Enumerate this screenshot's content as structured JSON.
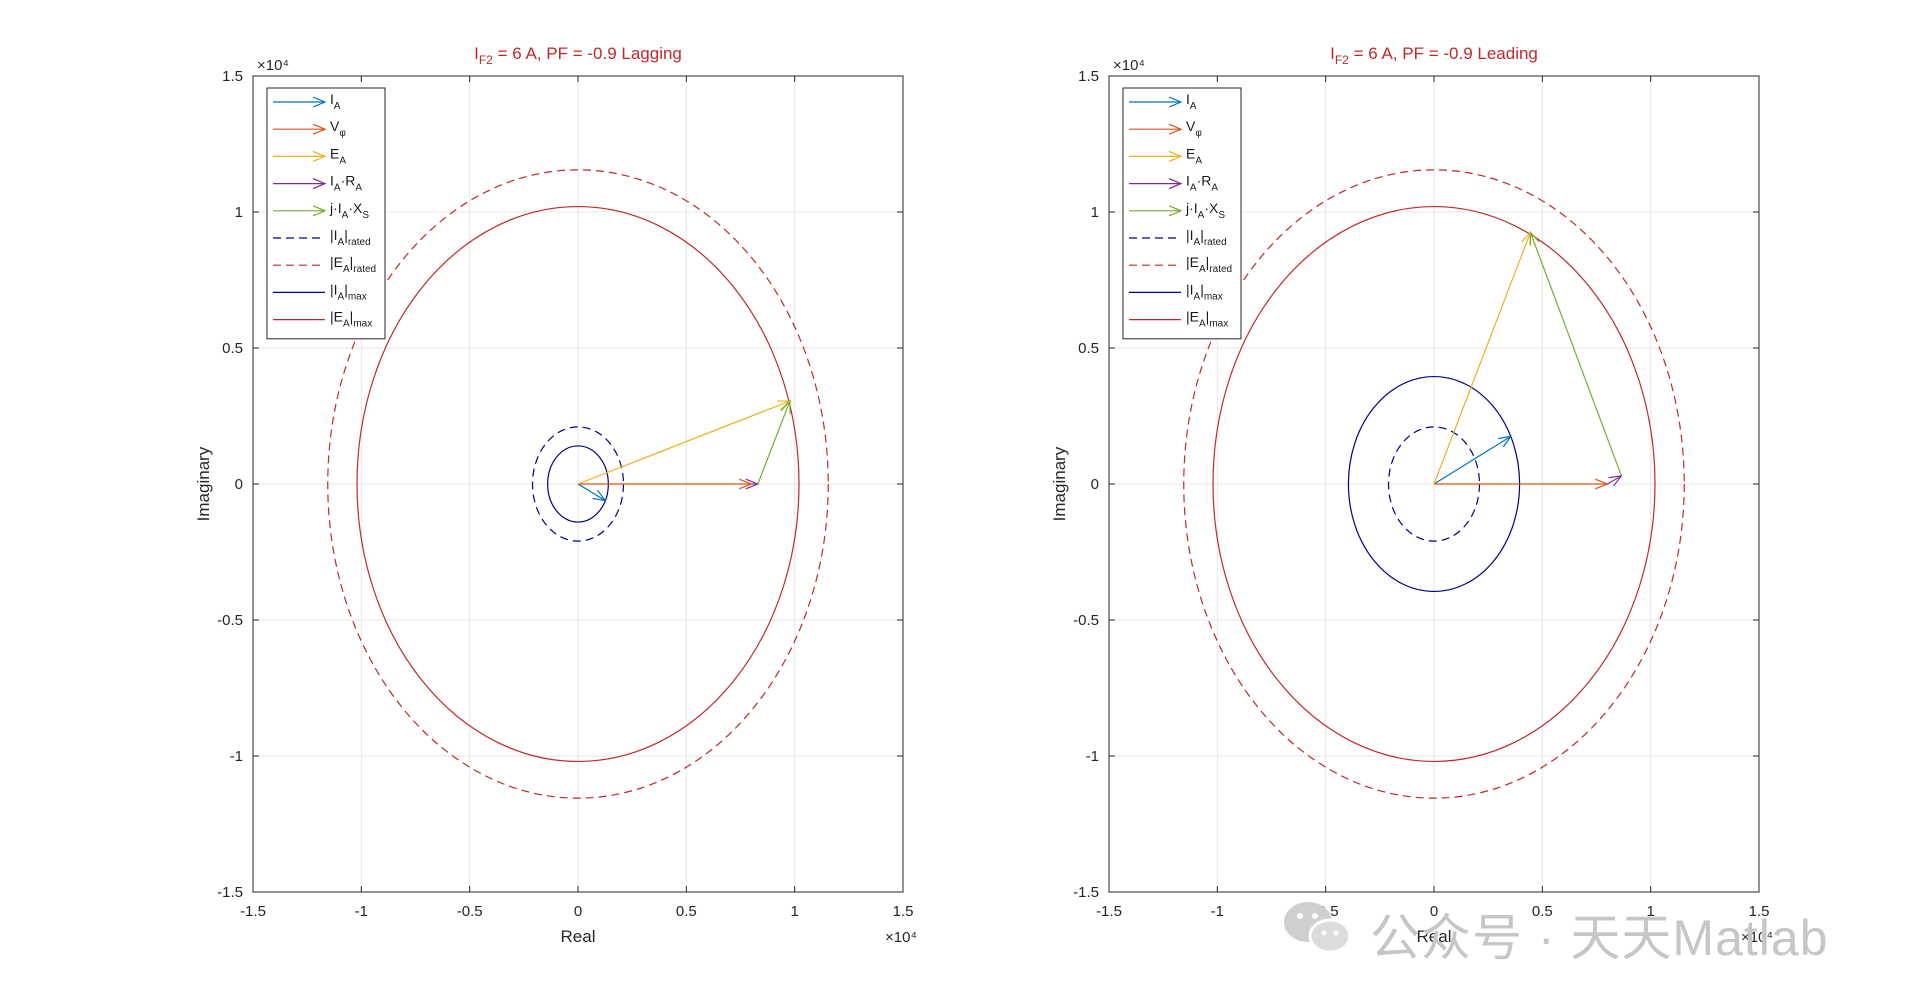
{
  "chart_data": [
    {
      "type": "phasor",
      "title": "I_F2 = 6 A, PF = -0.9 Lagging",
      "title_parts": {
        "main": "I",
        "sub": "F2",
        "rest": " = 6 A, PF = -0.9 Lagging"
      },
      "xlabel": "Real",
      "ylabel": "Imaginary",
      "axis_multiplier": "×10⁴",
      "xlim": [
        -15000,
        15000
      ],
      "ylim": [
        -15000,
        15000
      ],
      "xticks": [
        -15000,
        -10000,
        -5000,
        0,
        5000,
        10000,
        15000
      ],
      "yticks": [
        -15000,
        -10000,
        -5000,
        0,
        5000,
        10000,
        15000
      ],
      "xtick_labels": [
        "-1.5",
        "-1",
        "-0.5",
        "0",
        "0.5",
        "1",
        "1.5"
      ],
      "ytick_labels": [
        "-1.5",
        "-1",
        "-0.5",
        "0",
        "0.5",
        "1",
        "1.5"
      ],
      "grid": true,
      "legend_placement": "top-left",
      "legend": [
        {
          "label": "I",
          "sub": "A",
          "color": "#0072bd",
          "style": "arrow"
        },
        {
          "label": "V",
          "sub": "φ",
          "color": "#d95319",
          "style": "arrow"
        },
        {
          "label": "E",
          "sub": "A",
          "color": "#edb120",
          "style": "arrow"
        },
        {
          "label": "I",
          "sub": "A",
          "rest": "·R",
          "sub2": "A",
          "color": "#7e2f8e",
          "style": "arrow"
        },
        {
          "label": "j·I",
          "sub": "A",
          "rest": "·X",
          "sub2": "S",
          "color": "#77ac30",
          "style": "arrow"
        },
        {
          "label": "|I",
          "sub": "A",
          "rest": "|",
          "sub2": "rated",
          "color": "#00008b",
          "style": "dashed"
        },
        {
          "label": "|E",
          "sub": "A",
          "rest": "|",
          "sub2": "rated",
          "color": "#c0282a",
          "style": "dashed"
        },
        {
          "label": "|I",
          "sub": "A",
          "rest": "|",
          "sub2": "max",
          "color": "#00008b",
          "style": "solid"
        },
        {
          "label": "|E",
          "sub": "A",
          "rest": "|",
          "sub2": "max",
          "color": "#c0282a",
          "style": "solid"
        }
      ],
      "circles": [
        {
          "name": "|I_A|rated",
          "radius": 2100,
          "color": "#00008b",
          "style": "dashed"
        },
        {
          "name": "|E_A|rated",
          "radius": 11550,
          "color": "#c0282a",
          "style": "dashed"
        },
        {
          "name": "|I_A|max",
          "radius": 1400,
          "color": "#00008b",
          "style": "solid"
        },
        {
          "name": "|E_A|max",
          "radius": 10200,
          "color": "#c0282a",
          "style": "solid"
        }
      ],
      "phasors": [
        {
          "name": "I_A",
          "from": [
            0,
            0
          ],
          "to": [
            1260,
            -610
          ],
          "color": "#0072bd"
        },
        {
          "name": "V_phi",
          "from": [
            0,
            0
          ],
          "to": [
            8000,
            0
          ],
          "color": "#d95319"
        },
        {
          "name": "E_A",
          "from": [
            0,
            0
          ],
          "to": [
            9780,
            3050
          ],
          "color": "#edb120"
        },
        {
          "name": "I_A*R_A",
          "from": [
            8000,
            0
          ],
          "to": [
            8300,
            0
          ],
          "color": "#7e2f8e"
        },
        {
          "name": "j*I_A*X_S",
          "from": [
            8300,
            0
          ],
          "to": [
            9780,
            3050
          ],
          "color": "#77ac30"
        }
      ]
    },
    {
      "type": "phasor",
      "title": "I_F2 = 6 A, PF = -0.9 Leading",
      "title_parts": {
        "main": "I",
        "sub": "F2",
        "rest": " = 6 A, PF = -0.9 Leading"
      },
      "xlabel": "Real",
      "ylabel": "Imaginary",
      "axis_multiplier": "×10⁴",
      "xlim": [
        -15000,
        15000
      ],
      "ylim": [
        -15000,
        15000
      ],
      "xticks": [
        -15000,
        -10000,
        -5000,
        0,
        5000,
        10000,
        15000
      ],
      "yticks": [
        -15000,
        -10000,
        -5000,
        0,
        5000,
        10000,
        15000
      ],
      "xtick_labels": [
        "-1.5",
        "-1",
        "-0.5",
        "0",
        "0.5",
        "1",
        "1.5"
      ],
      "ytick_labels": [
        "-1.5",
        "-1",
        "-0.5",
        "0",
        "0.5",
        "1",
        "1.5"
      ],
      "grid": true,
      "legend_placement": "top-left",
      "legend": [
        {
          "label": "I",
          "sub": "A",
          "color": "#0072bd",
          "style": "arrow"
        },
        {
          "label": "V",
          "sub": "φ",
          "color": "#d95319",
          "style": "arrow"
        },
        {
          "label": "E",
          "sub": "A",
          "color": "#edb120",
          "style": "arrow"
        },
        {
          "label": "I",
          "sub": "A",
          "rest": "·R",
          "sub2": "A",
          "color": "#7e2f8e",
          "style": "arrow"
        },
        {
          "label": "j·I",
          "sub": "A",
          "rest": "·X",
          "sub2": "S",
          "color": "#77ac30",
          "style": "arrow"
        },
        {
          "label": "|I",
          "sub": "A",
          "rest": "|",
          "sub2": "rated",
          "color": "#00008b",
          "style": "dashed"
        },
        {
          "label": "|E",
          "sub": "A",
          "rest": "|",
          "sub2": "rated",
          "color": "#c0282a",
          "style": "dashed"
        },
        {
          "label": "|I",
          "sub": "A",
          "rest": "|",
          "sub2": "max",
          "color": "#00008b",
          "style": "solid"
        },
        {
          "label": "|E",
          "sub": "A",
          "rest": "|",
          "sub2": "max",
          "color": "#c0282a",
          "style": "solid"
        }
      ],
      "circles": [
        {
          "name": "|I_A|rated",
          "radius": 2100,
          "color": "#00008b",
          "style": "dashed"
        },
        {
          "name": "|E_A|rated",
          "radius": 11550,
          "color": "#c0282a",
          "style": "dashed"
        },
        {
          "name": "|I_A|max",
          "radius": 3950,
          "color": "#00008b",
          "style": "solid"
        },
        {
          "name": "|E_A|max",
          "radius": 10200,
          "color": "#c0282a",
          "style": "solid"
        }
      ],
      "phasors": [
        {
          "name": "I_A",
          "from": [
            0,
            0
          ],
          "to": [
            3550,
            1750
          ],
          "color": "#0072bd"
        },
        {
          "name": "V_phi",
          "from": [
            0,
            0
          ],
          "to": [
            8000,
            0
          ],
          "color": "#d95319"
        },
        {
          "name": "E_A",
          "from": [
            0,
            0
          ],
          "to": [
            4450,
            9250
          ],
          "color": "#edb120"
        },
        {
          "name": "I_A*R_A",
          "from": [
            8000,
            0
          ],
          "to": [
            8650,
            300
          ],
          "color": "#7e2f8e"
        },
        {
          "name": "j*I_A*X_S",
          "from": [
            8650,
            300
          ],
          "to": [
            4450,
            9250
          ],
          "color": "#77ac30"
        }
      ]
    }
  ],
  "watermark": {
    "text": "公众号 · 天天Matlab"
  }
}
